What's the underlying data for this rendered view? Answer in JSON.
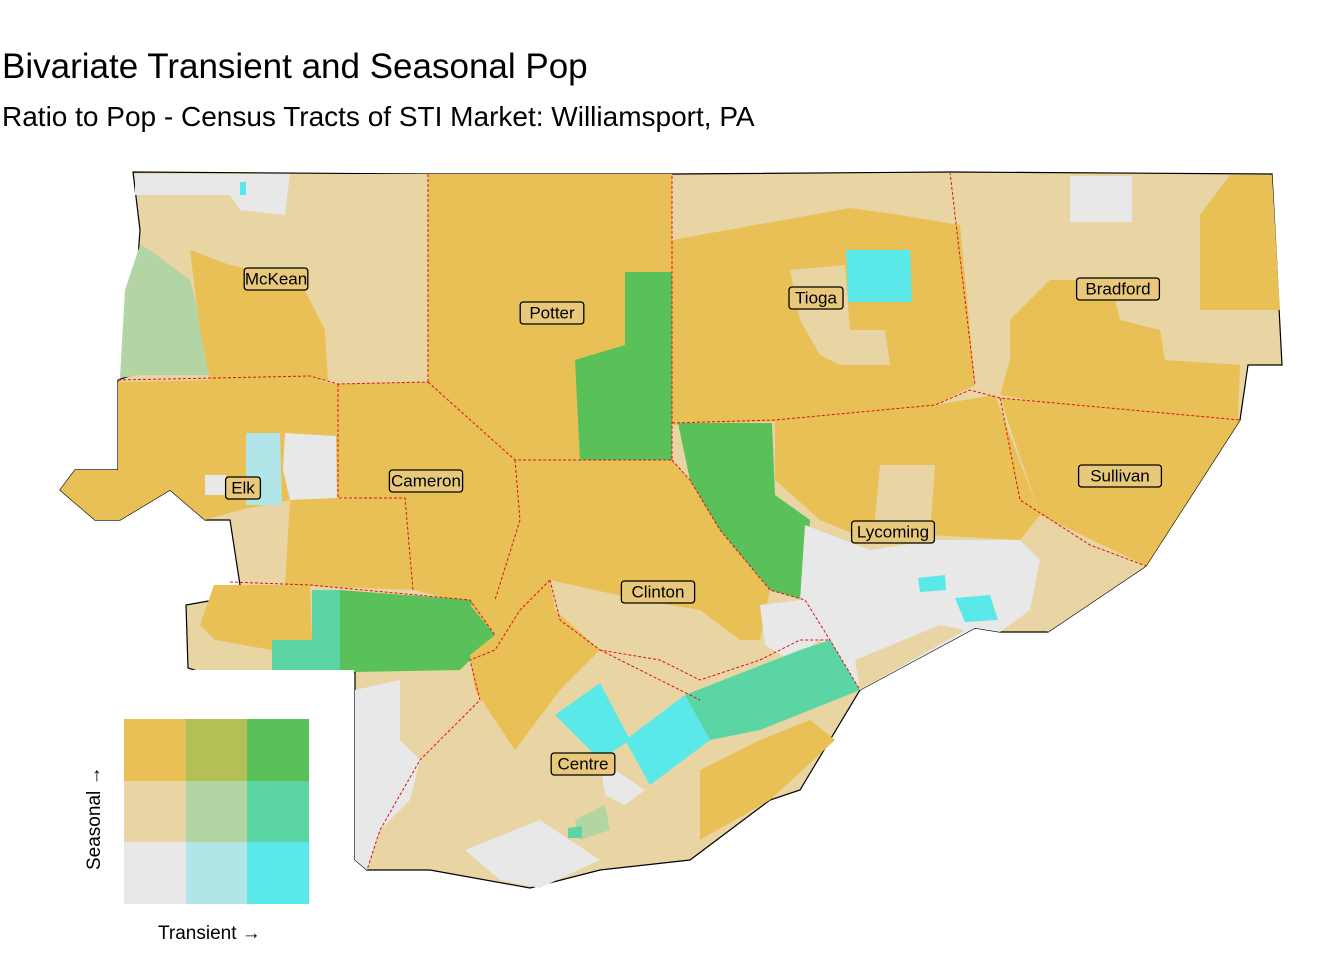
{
  "title": "Bivariate Transient and Seasonal Pop",
  "subtitle": "Ratio to Pop - Census Tracts of STI Market: Williamsport, PA",
  "palette": {
    "low_low": "#e8e8e8",
    "low_mid": "#b2e5e8",
    "low_high": "#5ae8e8",
    "mid_low": "#e8d5a3",
    "mid_mid": "#b2d5a3",
    "mid_high": "#5ad5a3",
    "high_low": "#e8c055",
    "high_mid": "#b2c055",
    "high_high": "#5ac05a",
    "county_border": "#e0101a",
    "label_fill": "#e8c97c"
  },
  "counties": [
    {
      "name": "McKean"
    },
    {
      "name": "Potter"
    },
    {
      "name": "Tioga"
    },
    {
      "name": "Bradford"
    },
    {
      "name": "Elk"
    },
    {
      "name": "Cameron"
    },
    {
      "name": "Sullivan"
    },
    {
      "name": "Lycoming"
    },
    {
      "name": "Clinton"
    },
    {
      "name": "Centre"
    }
  ],
  "legend": {
    "x_label": "Transient →",
    "y_label": "Seasonal →",
    "grid_rows": [
      [
        "high_low",
        "high_mid",
        "high_high"
      ],
      [
        "mid_low",
        "mid_mid",
        "mid_high"
      ],
      [
        "low_low",
        "low_mid",
        "low_high"
      ]
    ]
  }
}
